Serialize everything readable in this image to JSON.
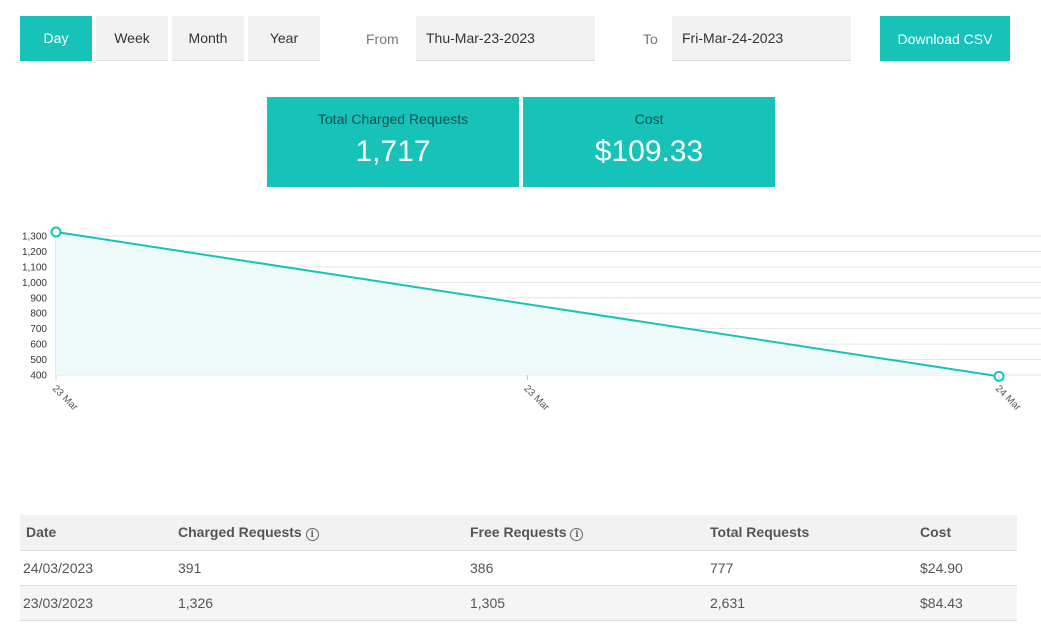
{
  "periods": {
    "day": "Day",
    "week": "Week",
    "month": "Month",
    "year": "Year",
    "active": "day"
  },
  "range": {
    "from_label": "From",
    "from_value": "Thu-Mar-23-2023",
    "to_label": "To",
    "to_value": "Fri-Mar-24-2023"
  },
  "download_label": "Download CSV",
  "stats": {
    "charged_label": "Total Charged Requests",
    "charged_value": "1,717",
    "cost_label": "Cost",
    "cost_value": "$109.33"
  },
  "chart_data": {
    "type": "line",
    "x": [
      "23 Mar",
      "24 Mar"
    ],
    "x_tick_labels": [
      "23 Mar",
      "23 Mar",
      "24 Mar"
    ],
    "series": [
      {
        "values": [
          1326,
          391
        ]
      }
    ],
    "y_ticks": [
      400,
      500,
      600,
      700,
      800,
      900,
      1000,
      1100,
      1200,
      1300
    ],
    "y_tick_labels": [
      "400",
      "500",
      "600",
      "700",
      "800",
      "900",
      "1,000",
      "1,100",
      "1,200",
      "1,300"
    ],
    "ylim": [
      400,
      1326
    ],
    "grid": true,
    "line_color": "#17c3b8",
    "fill_color": "#eefafa"
  },
  "table": {
    "headers": {
      "date": "Date",
      "charged": "Charged Requests",
      "free": "Free Requests",
      "total": "Total Requests",
      "cost": "Cost"
    },
    "rows": [
      {
        "date": "24/03/2023",
        "charged": "391",
        "free": "386",
        "total": "777",
        "cost": "$24.90"
      },
      {
        "date": "23/03/2023",
        "charged": "1,326",
        "free": "1,305",
        "total": "2,631",
        "cost": "$84.43"
      }
    ]
  },
  "colors": {
    "accent": "#17c3b8",
    "inactive_bg": "#f2f2f2"
  }
}
